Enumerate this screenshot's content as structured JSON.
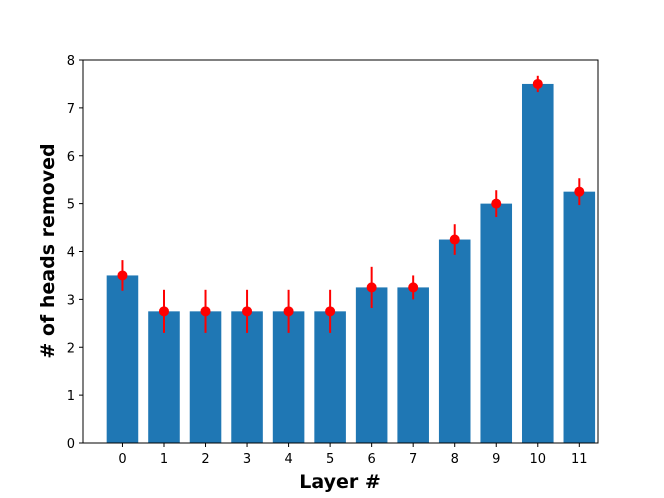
{
  "chart_data": {
    "type": "bar",
    "title": "",
    "xlabel": "Layer #",
    "ylabel": "# of heads removed",
    "categories": [
      "0",
      "1",
      "2",
      "3",
      "4",
      "5",
      "6",
      "7",
      "8",
      "9",
      "10",
      "11"
    ],
    "values": [
      3.5,
      2.75,
      2.75,
      2.75,
      2.75,
      2.75,
      3.25,
      3.25,
      4.25,
      5.0,
      7.5,
      5.25
    ],
    "error_low": [
      3.18,
      2.3,
      2.3,
      2.3,
      2.3,
      2.3,
      2.82,
      3.0,
      3.93,
      4.72,
      7.33,
      4.97
    ],
    "error_high": [
      3.82,
      3.2,
      3.2,
      3.2,
      3.2,
      3.2,
      3.68,
      3.5,
      4.57,
      5.28,
      7.67,
      5.53
    ],
    "ylim": [
      0,
      8
    ],
    "yticks": [
      "0",
      "1",
      "2",
      "3",
      "4",
      "5",
      "6",
      "7",
      "8"
    ],
    "grid": false,
    "colors": {
      "bar": "#1f77b4",
      "marker": "#ff0000",
      "axis": "#000000"
    }
  }
}
